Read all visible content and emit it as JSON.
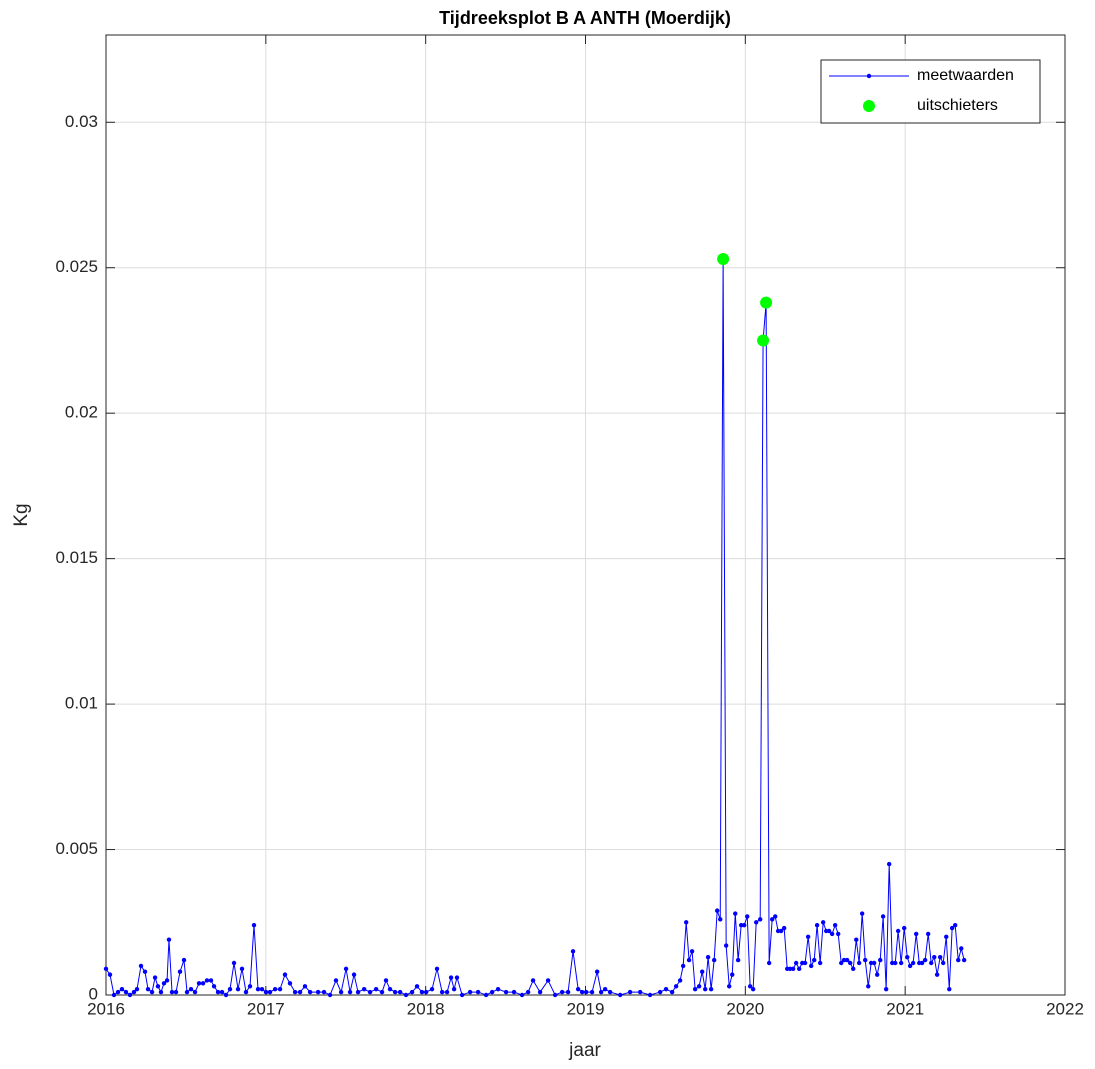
{
  "chart_data": {
    "type": "line",
    "title": "Tijdreeksplot B A ANTH (Moerdijk)",
    "x_label": "jaar",
    "y_label": "Kg",
    "xlim": [
      2016,
      2022
    ],
    "xticks": [
      2016,
      2017,
      2018,
      2019,
      2020,
      2021,
      2022
    ],
    "ylim": [
      0,
      0.033
    ],
    "yticks": [
      0,
      0.005,
      0.01,
      0.015,
      0.02,
      0.025,
      0.03
    ],
    "grid": true,
    "legend": "top-right",
    "series": [
      {
        "name": "meetwaarden",
        "color": "#0000ff",
        "line": true,
        "marker_size": 2.2,
        "x": [
          2016.0,
          2016.025,
          2016.05,
          2016.075,
          2016.1,
          2016.125,
          2016.15,
          2016.175,
          2016.194,
          2016.219,
          2016.244,
          2016.263,
          2016.288,
          2016.307,
          2016.325,
          2016.344,
          2016.363,
          2016.382,
          2016.394,
          2016.413,
          2016.438,
          2016.463,
          2016.488,
          2016.507,
          2016.532,
          2016.557,
          2016.582,
          2016.607,
          2016.632,
          2016.657,
          2016.676,
          2016.701,
          2016.726,
          2016.751,
          2016.776,
          2016.801,
          2016.826,
          2016.851,
          2016.876,
          2016.901,
          2016.926,
          2016.951,
          2016.976,
          2017.001,
          2017.026,
          2017.058,
          2017.089,
          2017.12,
          2017.151,
          2017.183,
          2017.214,
          2017.245,
          2017.277,
          2017.327,
          2017.364,
          2017.402,
          2017.439,
          2017.471,
          2017.502,
          2017.527,
          2017.552,
          2017.577,
          2017.615,
          2017.652,
          2017.69,
          2017.727,
          2017.752,
          2017.777,
          2017.809,
          2017.84,
          2017.877,
          2017.915,
          2017.946,
          2017.977,
          2018.003,
          2018.04,
          2018.071,
          2018.103,
          2018.134,
          2018.159,
          2018.178,
          2018.196,
          2018.228,
          2018.278,
          2018.328,
          2018.378,
          2018.416,
          2018.453,
          2018.503,
          2018.553,
          2018.603,
          2018.641,
          2018.672,
          2018.716,
          2018.766,
          2018.81,
          2018.854,
          2018.891,
          2018.922,
          2018.954,
          2018.979,
          2019.004,
          2019.041,
          2019.073,
          2019.098,
          2019.123,
          2019.154,
          2019.217,
          2019.279,
          2019.342,
          2019.404,
          2019.467,
          2019.504,
          2019.542,
          2019.567,
          2019.592,
          2019.611,
          2019.63,
          2019.648,
          2019.667,
          2019.686,
          2019.711,
          2019.73,
          2019.749,
          2019.767,
          2019.786,
          2019.805,
          2019.824,
          2019.843,
          2019.861,
          2019.88,
          2019.899,
          2019.918,
          2019.937,
          2019.955,
          2019.974,
          2019.993,
          2020.012,
          2020.03,
          2020.049,
          2020.068,
          2020.093,
          2020.111,
          2020.13,
          2020.149,
          2020.168,
          2020.187,
          2020.205,
          2020.224,
          2020.243,
          2020.262,
          2020.28,
          2020.299,
          2020.318,
          2020.337,
          2020.356,
          2020.374,
          2020.393,
          2020.412,
          2020.431,
          2020.449,
          2020.468,
          2020.487,
          2020.506,
          2020.524,
          2020.543,
          2020.562,
          2020.581,
          2020.6,
          2020.618,
          2020.637,
          2020.656,
          2020.675,
          2020.694,
          2020.712,
          2020.731,
          2020.75,
          2020.769,
          2020.787,
          2020.806,
          2020.825,
          2020.844,
          2020.862,
          2020.881,
          2020.9,
          2020.919,
          2020.938,
          2020.956,
          2020.975,
          2020.994,
          2021.013,
          2021.031,
          2021.05,
          2021.069,
          2021.088,
          2021.106,
          2021.125,
          2021.144,
          2021.163,
          2021.182,
          2021.2,
          2021.219,
          2021.238,
          2021.257,
          2021.276,
          2021.294,
          2021.313,
          2021.332,
          2021.351,
          2021.369
        ],
        "values": [
          0.0009,
          0.0007,
          0,
          0.0001,
          0.0002,
          0.0001,
          0,
          0.0001,
          0.0002,
          0.001,
          0.0008,
          0.0002,
          0.0001,
          0.0006,
          0.0003,
          0.0001,
          0.0004,
          0.0005,
          0.0019,
          0.0001,
          0.0001,
          0.0008,
          0.0012,
          0.0001,
          0.0002,
          0.0001,
          0.0004,
          0.0004,
          0.0005,
          0.0005,
          0.0003,
          0.0001,
          0.0001,
          0,
          0.0002,
          0.0011,
          0.0002,
          0.0009,
          0.0001,
          0.0003,
          0.0024,
          0.0002,
          0.0002,
          0.0001,
          0.0001,
          0.0002,
          0.0002,
          0.0007,
          0.0004,
          0.0001,
          0.0001,
          0.0003,
          0.0001,
          0.0001,
          0.0001,
          0,
          0.0005,
          0.0001,
          0.0009,
          0.0001,
          0.0007,
          0.0001,
          0.0002,
          0.0001,
          0.0002,
          0.0001,
          0.0005,
          0.0002,
          0.0001,
          0.0001,
          0,
          0.0001,
          0.0003,
          0.0001,
          0.0001,
          0.0002,
          0.0009,
          0.0001,
          0.0001,
          0.0006,
          0.0002,
          0.0006,
          0,
          0.0001,
          0.0001,
          0,
          0.0001,
          0.0002,
          0.0001,
          0.0001,
          0,
          0.0001,
          0.0005,
          0.0001,
          0.0005,
          0,
          0.0001,
          0.0001,
          0.0015,
          0.0002,
          0.0001,
          0.0001,
          0.0001,
          0.0008,
          0.0001,
          0.0002,
          0.0001,
          0,
          0.0001,
          0.0001,
          0,
          0.0001,
          0.0002,
          0.0001,
          0.0003,
          0.0005,
          0.001,
          0.0025,
          0.0012,
          0.0015,
          0.0002,
          0.0003,
          0.0008,
          0.0002,
          0.0013,
          0.0002,
          0.0012,
          0.0029,
          0.0026,
          0.0253,
          0.0017,
          0.0003,
          0.0007,
          0.0028,
          0.0012,
          0.0024,
          0.0024,
          0.0027,
          0.0003,
          0.0002,
          0.0025,
          0.0026,
          0.0225,
          0.0238,
          0.0011,
          0.0026,
          0.0027,
          0.0022,
          0.0022,
          0.0023,
          0.0009,
          0.0009,
          0.0009,
          0.0011,
          0.0009,
          0.0011,
          0.0011,
          0.002,
          0.001,
          0.0012,
          0.0024,
          0.0011,
          0.0025,
          0.0022,
          0.0022,
          0.0021,
          0.0024,
          0.0021,
          0.0011,
          0.0012,
          0.0012,
          0.0011,
          0.0009,
          0.0019,
          0.0011,
          0.0028,
          0.0012,
          0.0003,
          0.0011,
          0.0011,
          0.0007,
          0.0012,
          0.0027,
          0.0002,
          0.0045,
          0.0011,
          0.0011,
          0.0022,
          0.0011,
          0.0023,
          0.0013,
          0.001,
          0.0011,
          0.0021,
          0.0011,
          0.0011,
          0.0012,
          0.0021,
          0.0011,
          0.0013,
          0.0007,
          0.0013,
          0.0011,
          0.002,
          0.0002,
          0.0023,
          0.0024,
          0.0012,
          0.0016,
          0.0012
        ]
      },
      {
        "name": "uitschieters",
        "color": "#00ff00",
        "line": false,
        "marker_size": 6,
        "x": [
          2019.861,
          2020.111,
          2020.13
        ],
        "values": [
          0.0253,
          0.0225,
          0.0238
        ]
      }
    ]
  }
}
